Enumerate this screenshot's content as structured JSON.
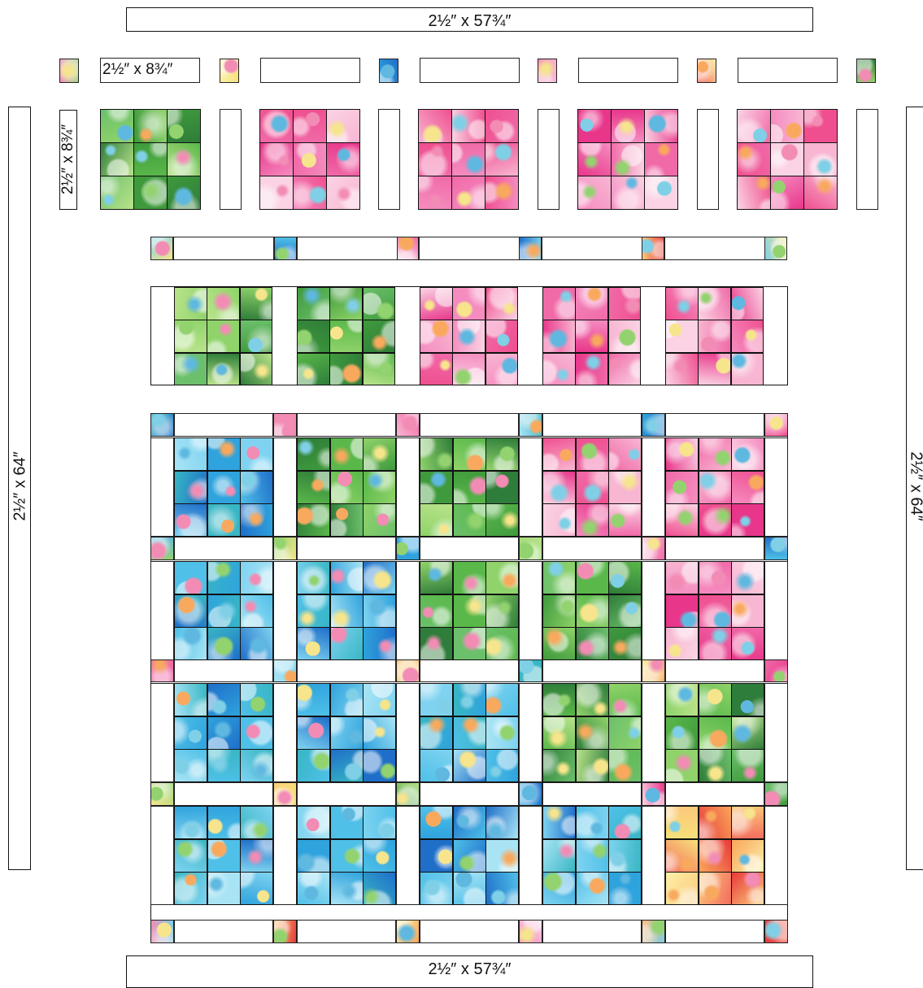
{
  "labels": {
    "top_border": "2½″ x 57¾″",
    "bottom_border": "2½″ x 57¾″",
    "left_border": "2½″ x 64″",
    "right_border": "2½″ x 64″",
    "sashing_strip": "2½″ x 8¾″",
    "sashing_strip_vertical": "2½″ x 8¾″"
  },
  "palette": {
    "pink": [
      "#f06aa8",
      "#f58cc0",
      "#ef4f8f",
      "#f8b6d2",
      "#e8368a",
      "#fbd3e4"
    ],
    "green": [
      "#5ab84a",
      "#8fd36a",
      "#3f9a3c",
      "#b9e38a",
      "#6cc06b",
      "#2f7d3a"
    ],
    "blue": [
      "#2fa3dd",
      "#4fc0e8",
      "#1f6fc9",
      "#7fd3f0",
      "#38b6c4",
      "#a9e4f5"
    ],
    "warm": [
      "#f7e07a",
      "#f9a55a",
      "#f46d5e",
      "#fdf0a8",
      "#e83a3a",
      "#fbc87a"
    ],
    "multi": [
      "#f6e58c",
      "#7fd0e6",
      "#f28cb5",
      "#93d36f",
      "#f9a95e",
      "#5fb8e0"
    ]
  },
  "quilt": {
    "top_row_block_themes": [
      "green",
      "pink",
      "pink",
      "pink",
      "pink"
    ],
    "assembled_row_themes": [
      "green",
      "green",
      "pink",
      "pink",
      "pink"
    ],
    "grid_themes": [
      [
        "blue",
        "green",
        "green",
        "pink",
        "pink"
      ],
      [
        "blue",
        "blue",
        "green",
        "green",
        "pink"
      ],
      [
        "blue",
        "blue",
        "blue",
        "green",
        "green"
      ],
      [
        "blue",
        "blue",
        "blue",
        "blue",
        "warm"
      ]
    ]
  }
}
